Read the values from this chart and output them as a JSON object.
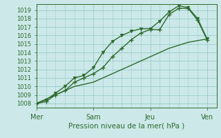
{
  "xlabel": "Pression niveau de la mer( hPa )",
  "bg_color": "#cce8e8",
  "grid_color": "#99cccc",
  "line_color": "#2d6a2d",
  "ylim": [
    1007.5,
    1019.7
  ],
  "yticks": [
    1008,
    1009,
    1010,
    1011,
    1012,
    1013,
    1014,
    1015,
    1016,
    1017,
    1018,
    1019
  ],
  "day_labels": [
    "Mer",
    "Sam",
    "Jeu",
    "Ven"
  ],
  "day_positions": [
    0,
    3,
    6,
    9
  ],
  "xlim": [
    0,
    9.5
  ],
  "series1_x": [
    0,
    0.5,
    1,
    1.5,
    2,
    2.5,
    3,
    3.5,
    4,
    4.5,
    5,
    5.5,
    6,
    6.5,
    7,
    7.5,
    8,
    8.5,
    9
  ],
  "series1_y": [
    1008.0,
    1008.2,
    1009.0,
    1009.5,
    1010.5,
    1011.0,
    1011.5,
    1012.2,
    1013.5,
    1014.5,
    1015.5,
    1016.3,
    1016.7,
    1016.7,
    1018.5,
    1019.2,
    1019.2,
    1017.8,
    1015.5
  ],
  "series2_x": [
    0,
    0.5,
    1,
    1.5,
    2,
    2.5,
    3,
    3.5,
    4,
    4.5,
    5,
    5.5,
    6,
    6.5,
    7,
    7.5,
    8,
    8.5,
    9
  ],
  "series2_y": [
    1008.0,
    1008.4,
    1009.2,
    1010.0,
    1011.0,
    1011.3,
    1012.2,
    1014.0,
    1015.3,
    1016.0,
    1016.5,
    1016.8,
    1016.8,
    1017.7,
    1018.8,
    1019.5,
    1019.3,
    1018.0,
    1015.6
  ],
  "series3_x": [
    0,
    1,
    2,
    3,
    4,
    5,
    6,
    7,
    8,
    9
  ],
  "series3_y": [
    1008.0,
    1009.0,
    1010.0,
    1010.5,
    1011.5,
    1012.5,
    1013.5,
    1014.5,
    1015.2,
    1015.6
  ],
  "marker_size": 3,
  "line_width": 1.0,
  "tick_fontsize": 6,
  "xlabel_fontsize": 7.5
}
